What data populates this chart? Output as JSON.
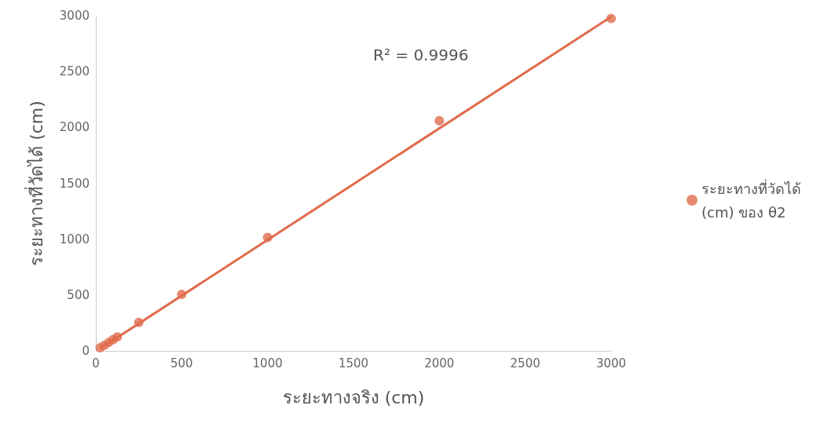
{
  "chart_data": {
    "type": "scatter",
    "xlabel": "ระยะทางจริง (cm)",
    "ylabel": "ระยะทางที่วัดได้ (cm)",
    "annotations": [
      "R² = 0.9996"
    ],
    "x": [
      25,
      50,
      75,
      100,
      125,
      250,
      500,
      1000,
      2000,
      3000
    ],
    "series": [
      {
        "name": "ระยะทางที่วัดได้ (cm) ของ θ2",
        "color": "#e06b4c",
        "values": [
          28,
          50,
          75,
          100,
          125,
          255,
          505,
          1015,
          2060,
          2975
        ]
      },
      {
        "type": "line",
        "color": "#e06b4c",
        "x": [
          25,
          3000
        ],
        "values": [
          20,
          2990
        ],
        "marker": "none"
      }
    ],
    "xlim": [
      0,
      3000
    ],
    "xticks": [
      0,
      500,
      1000,
      1500,
      2000,
      2500,
      3000
    ],
    "ylim": [
      0,
      3000
    ],
    "yticks": [
      0,
      500,
      1000,
      1500,
      2000,
      2500,
      3000
    ],
    "grid": false,
    "legend": "right",
    "marker": "circle"
  }
}
